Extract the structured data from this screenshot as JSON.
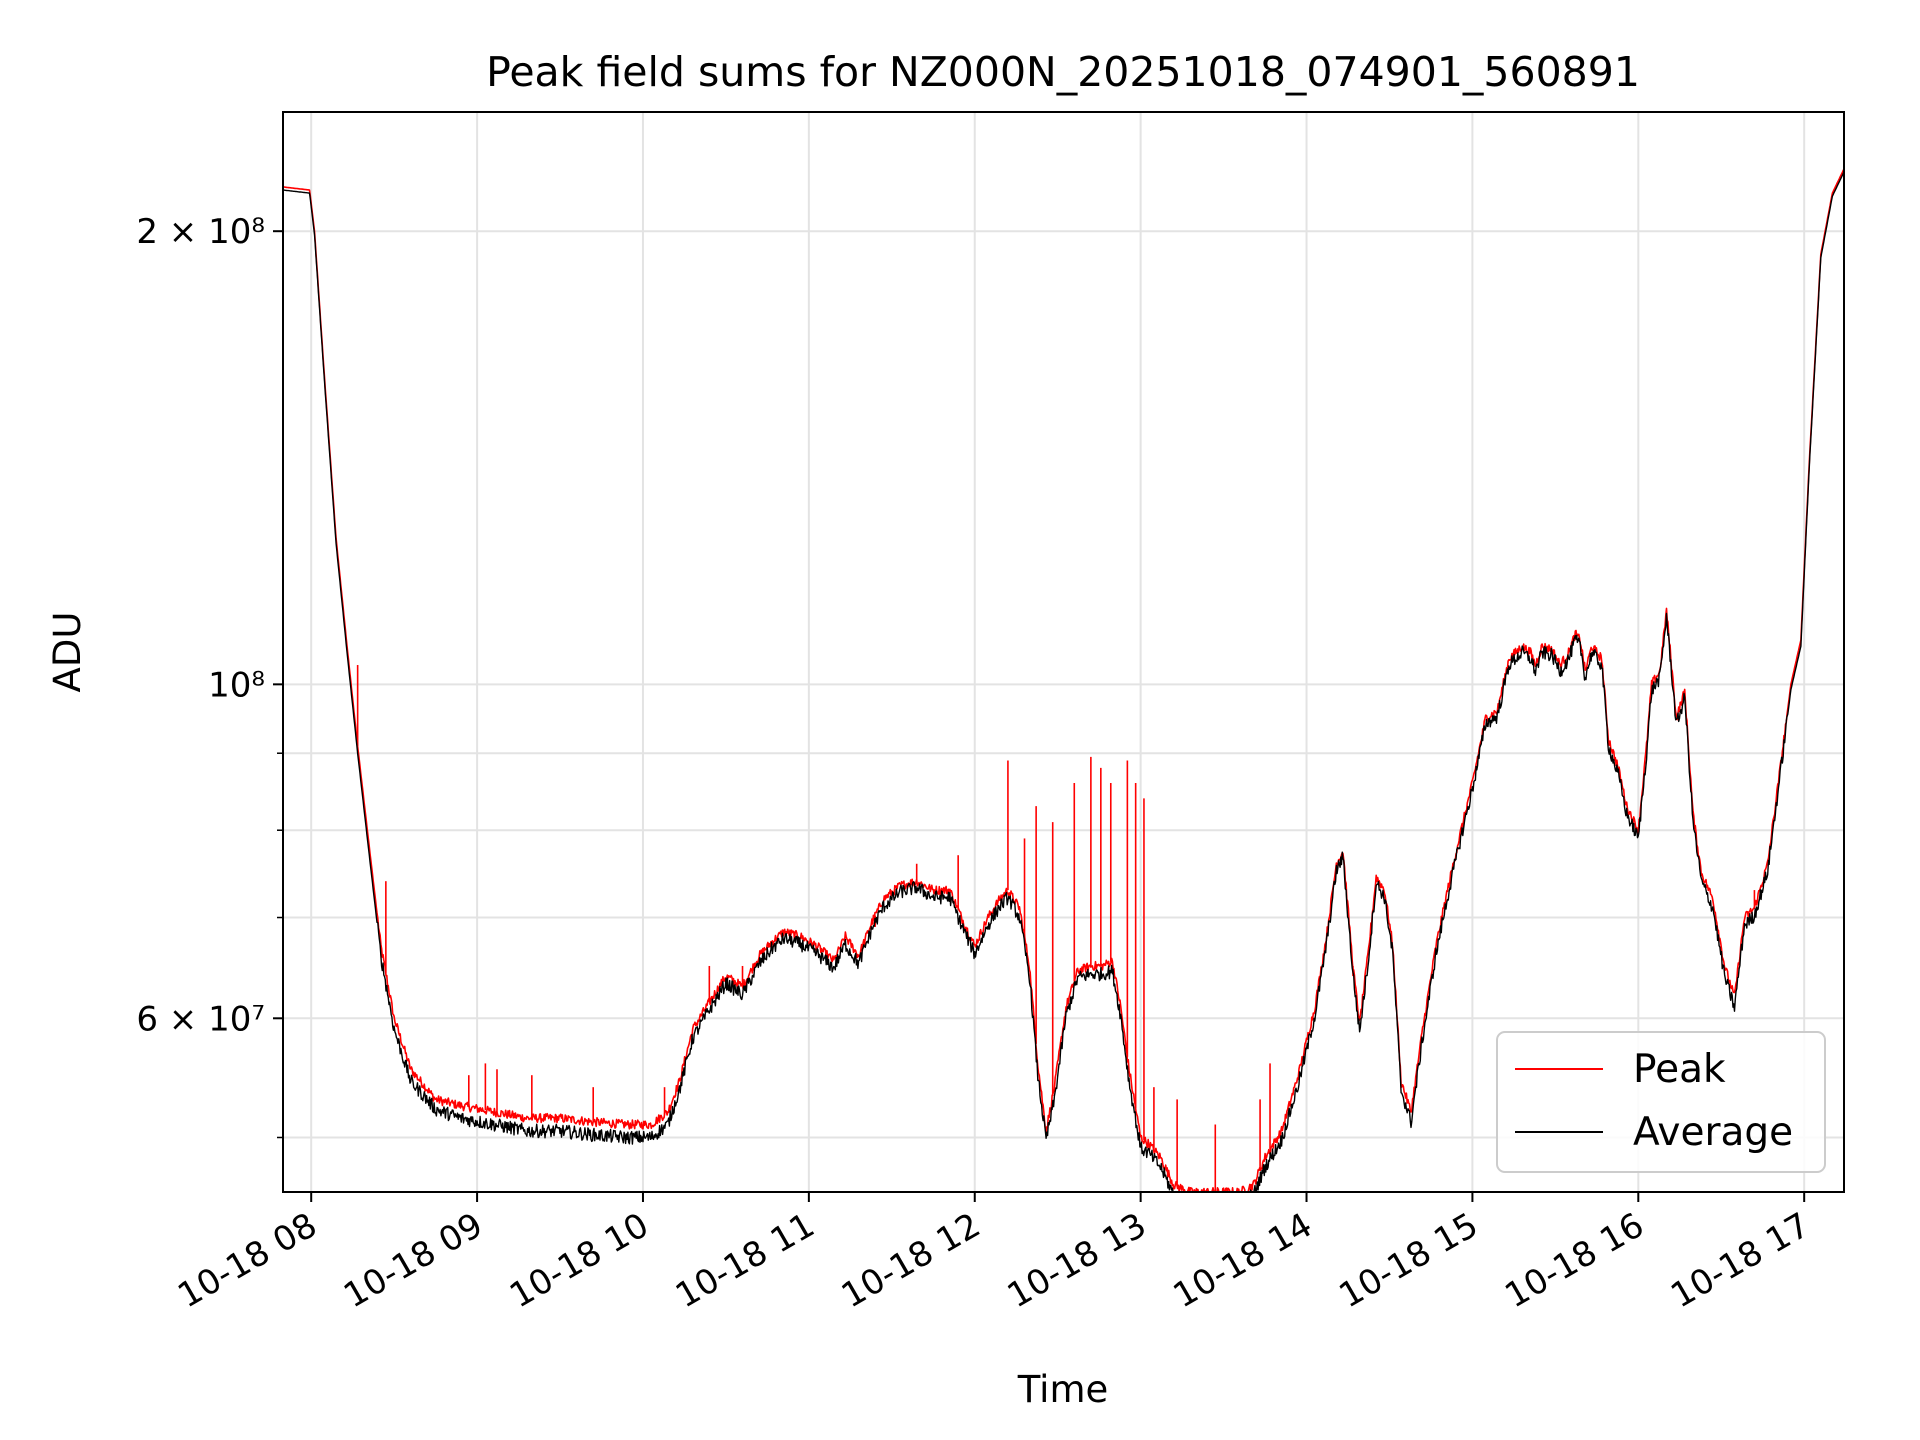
{
  "chart_data": {
    "type": "line",
    "title": "Peak field sums for NZ000N_20251018_074901_560891",
    "xlabel": "Time",
    "ylabel": "ADU",
    "yscale": "log",
    "grid": true,
    "legend_position": "lower-right",
    "xlim": [
      7.83,
      17.24
    ],
    "ylim": [
      46000000,
      240000000
    ],
    "x_unit": "hours on 2025-10-18",
    "x_ticks": [
      {
        "value": 8,
        "label": "10-18 08"
      },
      {
        "value": 9,
        "label": "10-18 09"
      },
      {
        "value": 10,
        "label": "10-18 10"
      },
      {
        "value": 11,
        "label": "10-18 11"
      },
      {
        "value": 12,
        "label": "10-18 12"
      },
      {
        "value": 13,
        "label": "10-18 13"
      },
      {
        "value": 14,
        "label": "10-18 14"
      },
      {
        "value": 15,
        "label": "10-18 15"
      },
      {
        "value": 16,
        "label": "10-18 16"
      },
      {
        "value": 17,
        "label": "10-18 17"
      }
    ],
    "y_major_ticks": [
      {
        "value": 200000000,
        "label": "2 × 10⁸"
      },
      {
        "value": 100000000,
        "label": "10⁸"
      },
      {
        "value": 60000000,
        "label": "6 × 10⁷"
      }
    ],
    "y_minor_ticks": [
      50000000,
      70000000,
      80000000,
      90000000
    ],
    "series": [
      {
        "name": "Peak",
        "color": "#ff0000",
        "x": [
          7.83,
          7.99,
          8.02,
          8.08,
          8.15,
          8.22,
          8.28,
          8.35,
          8.42,
          8.5,
          8.6,
          8.75,
          8.9,
          9.1,
          9.3,
          9.5,
          9.7,
          9.9,
          10.05,
          10.15,
          10.22,
          10.3,
          10.4,
          10.5,
          10.6,
          10.7,
          10.78,
          10.85,
          10.95,
          11.05,
          11.15,
          11.22,
          11.3,
          11.38,
          11.45,
          11.55,
          11.65,
          11.75,
          11.85,
          11.92,
          12.0,
          12.08,
          12.15,
          12.2,
          12.27,
          12.33,
          12.38,
          12.43,
          12.48,
          12.55,
          12.62,
          12.7,
          12.77,
          12.83,
          12.88,
          12.93,
          13.0,
          13.05,
          13.12,
          13.2,
          13.3,
          13.4,
          13.5,
          13.6,
          13.68,
          13.75,
          13.85,
          13.95,
          14.05,
          14.12,
          14.18,
          14.22,
          14.28,
          14.32,
          14.37,
          14.42,
          14.47,
          14.52,
          14.57,
          14.63,
          14.7,
          14.78,
          14.85,
          14.92,
          15.0,
          15.08,
          15.15,
          15.22,
          15.3,
          15.35,
          15.38,
          15.42,
          15.48,
          15.53,
          15.58,
          15.62,
          15.65,
          15.68,
          15.72,
          15.78,
          15.82,
          15.88,
          15.93,
          16.0,
          16.05,
          16.08,
          16.13,
          16.17,
          16.2,
          16.23,
          16.28,
          16.33,
          16.38,
          16.45,
          16.52,
          16.58,
          16.64,
          16.7,
          16.78,
          16.85,
          16.92,
          16.98,
          17.03,
          17.1,
          17.17,
          17.24
        ],
        "values": [
          214000000.0,
          213000000.0,
          200000000.0,
          160000000.0,
          125000000.0,
          105000000.0,
          91000000.0,
          78000000.0,
          67000000.0,
          60000000.0,
          55500000.0,
          53000000.0,
          52500000.0,
          52000000.0,
          51500000.0,
          51500000.0,
          51200000.0,
          51000000.0,
          51000000.0,
          52000000.0,
          54500000.0,
          59000000.0,
          61500000.0,
          64000000.0,
          63000000.0,
          66000000.0,
          67500000.0,
          68500000.0,
          68000000.0,
          67000000.0,
          65500000.0,
          68000000.0,
          66000000.0,
          69500000.0,
          72000000.0,
          73500000.0,
          74000000.0,
          73000000.0,
          73000000.0,
          70000000.0,
          67000000.0,
          70000000.0,
          72000000.0,
          73000000.0,
          71000000.0,
          65000000.0,
          56000000.0,
          50500000.0,
          54000000.0,
          61000000.0,
          64500000.0,
          65000000.0,
          65000000.0,
          65500000.0,
          61000000.0,
          55500000.0,
          50000000.0,
          49500000.0,
          48500000.0,
          46500000.0,
          46000000.0,
          46000000.0,
          46000000.0,
          46000000.0,
          46500000.0,
          48500000.0,
          50500000.0,
          55000000.0,
          61000000.0,
          68000000.0,
          76000000.0,
          77500000.0,
          65000000.0,
          59500000.0,
          66000000.0,
          74500000.0,
          73000000.0,
          67000000.0,
          54500000.0,
          52000000.0,
          59000000.0,
          67000000.0,
          73000000.0,
          79000000.0,
          86000000.0,
          95000000.0,
          96000000.0,
          104000000.0,
          106000000.0,
          105000000.0,
          103000000.0,
          106000000.0,
          105500000.0,
          103000000.0,
          105000000.0,
          108000000.0,
          107000000.0,
          102000000.0,
          106000000.0,
          104000000.0,
          92000000.0,
          88000000.0,
          83000000.0,
          80000000.0,
          91000000.0,
          100000000.0,
          102000000.0,
          112000000.0,
          103000000.0,
          95000000.0,
          99000000.0,
          82000000.0,
          75000000.0,
          72000000.0,
          65000000.0,
          62000000.0,
          70000000.0,
          71000000.0,
          76000000.0,
          87000000.0,
          100000000.0,
          107000000.0,
          140000000.0,
          193000000.0,
          212000000.0,
          220000000.0
        ]
      },
      {
        "name": "Average",
        "color": "#000000",
        "x": [
          7.83,
          7.99,
          8.02,
          8.08,
          8.15,
          8.22,
          8.28,
          8.35,
          8.42,
          8.5,
          8.6,
          8.75,
          8.9,
          9.1,
          9.3,
          9.5,
          9.7,
          9.9,
          10.05,
          10.15,
          10.22,
          10.3,
          10.4,
          10.5,
          10.6,
          10.7,
          10.78,
          10.85,
          10.95,
          11.05,
          11.15,
          11.22,
          11.3,
          11.38,
          11.45,
          11.55,
          11.65,
          11.75,
          11.85,
          11.92,
          12.0,
          12.08,
          12.15,
          12.2,
          12.27,
          12.33,
          12.38,
          12.43,
          12.48,
          12.55,
          12.62,
          12.7,
          12.77,
          12.83,
          12.88,
          12.93,
          13.0,
          13.05,
          13.12,
          13.2,
          13.3,
          13.4,
          13.5,
          13.6,
          13.68,
          13.75,
          13.85,
          13.95,
          14.05,
          14.12,
          14.18,
          14.22,
          14.28,
          14.32,
          14.37,
          14.42,
          14.47,
          14.52,
          14.57,
          14.63,
          14.7,
          14.78,
          14.85,
          14.92,
          15.0,
          15.08,
          15.15,
          15.22,
          15.3,
          15.35,
          15.38,
          15.42,
          15.48,
          15.53,
          15.58,
          15.62,
          15.65,
          15.68,
          15.72,
          15.78,
          15.82,
          15.88,
          15.93,
          16.0,
          16.05,
          16.08,
          16.13,
          16.17,
          16.2,
          16.23,
          16.28,
          16.33,
          16.38,
          16.45,
          16.52,
          16.58,
          16.64,
          16.7,
          16.78,
          16.85,
          16.92,
          16.98,
          17.03,
          17.1,
          17.17,
          17.24
        ],
        "values": [
          213000000.0,
          212000000.0,
          199000000.0,
          159000000.0,
          124000000.0,
          104000000.0,
          90000000.0,
          77000000.0,
          66000000.0,
          59000000.0,
          54500000.0,
          52200000.0,
          51500000.0,
          51000000.0,
          50500000.0,
          50500000.0,
          50200000.0,
          50000000.0,
          50000000.0,
          51000000.0,
          53800000.0,
          58200000.0,
          60800000.0,
          63300000.0,
          62200000.0,
          65200000.0,
          66800000.0,
          67800000.0,
          67200000.0,
          66200000.0,
          64800000.0,
          67200000.0,
          65200000.0,
          68800000.0,
          71200000.0,
          72800000.0,
          73300000.0,
          72200000.0,
          72200000.0,
          69200000.0,
          66200000.0,
          69200000.0,
          71200000.0,
          72200000.0,
          70000000.0,
          64000000.0,
          55000000.0,
          49800000.0,
          53000000.0,
          60200000.0,
          63800000.0,
          64200000.0,
          64200000.0,
          64500000.0,
          60200000.0,
          54500000.0,
          49200000.0,
          48800000.0,
          47800000.0,
          45800000.0,
          45400000.0,
          45400000.0,
          45400000.0,
          45400000.0,
          45800000.0,
          47800000.0,
          49800000.0,
          54200000.0,
          60200000.0,
          67200000.0,
          75200000.0,
          76800000.0,
          64200000.0,
          58800000.0,
          65200000.0,
          73800000.0,
          72200000.0,
          66200000.0,
          53800000.0,
          51200000.0,
          58200000.0,
          66200000.0,
          72200000.0,
          78200000.0,
          85200000.0,
          94200000.0,
          95200000.0,
          103000000.0,
          105000000.0,
          104000000.0,
          102000000.0,
          105000000.0,
          104500000.0,
          102000000.0,
          104000000.0,
          107000000.0,
          106000000.0,
          101000000.0,
          105000000.0,
          103000000.0,
          91000000.0,
          87000000.0,
          82000000.0,
          79000000.0,
          90000000.0,
          99000000.0,
          101000000.0,
          111000000.0,
          102000000.0,
          94000000.0,
          98000000.0,
          81000000.0,
          74000000.0,
          71000000.0,
          64000000.0,
          61000000.0,
          69200000.0,
          70200000.0,
          75200000.0,
          86200000.0,
          99200000.0,
          106000000.0,
          139000000.0,
          192000000.0,
          211000000.0,
          219000000.0
        ]
      }
    ],
    "peak_spikes": [
      {
        "x": 8.28,
        "value": 103000000.0
      },
      {
        "x": 8.45,
        "value": 74000000.0
      },
      {
        "x": 8.95,
        "value": 55000000.0
      },
      {
        "x": 9.05,
        "value": 56000000.0
      },
      {
        "x": 9.12,
        "value": 55500000.0
      },
      {
        "x": 9.33,
        "value": 55000000.0
      },
      {
        "x": 9.7,
        "value": 54000000.0
      },
      {
        "x": 10.13,
        "value": 54000000.0
      },
      {
        "x": 10.4,
        "value": 65000000.0
      },
      {
        "x": 10.6,
        "value": 65000000.0
      },
      {
        "x": 11.4,
        "value": 69000000.0
      },
      {
        "x": 11.65,
        "value": 76000000.0
      },
      {
        "x": 11.9,
        "value": 77000000.0
      },
      {
        "x": 12.2,
        "value": 89000000.0
      },
      {
        "x": 12.3,
        "value": 79000000.0
      },
      {
        "x": 12.37,
        "value": 83000000.0
      },
      {
        "x": 12.47,
        "value": 81000000.0
      },
      {
        "x": 12.6,
        "value": 86000000.0
      },
      {
        "x": 12.7,
        "value": 89500000.0
      },
      {
        "x": 12.76,
        "value": 88000000.0
      },
      {
        "x": 12.82,
        "value": 86000000.0
      },
      {
        "x": 12.92,
        "value": 89000000.0
      },
      {
        "x": 12.97,
        "value": 86000000.0
      },
      {
        "x": 13.02,
        "value": 84000000.0
      },
      {
        "x": 13.08,
        "value": 54000000.0
      },
      {
        "x": 13.22,
        "value": 53000000.0
      },
      {
        "x": 13.45,
        "value": 51000000.0
      },
      {
        "x": 13.72,
        "value": 53000000.0
      },
      {
        "x": 13.78,
        "value": 56000000.0
      },
      {
        "x": 14.28,
        "value": 64000000.0
      },
      {
        "x": 16.7,
        "value": 73000000.0
      }
    ]
  }
}
